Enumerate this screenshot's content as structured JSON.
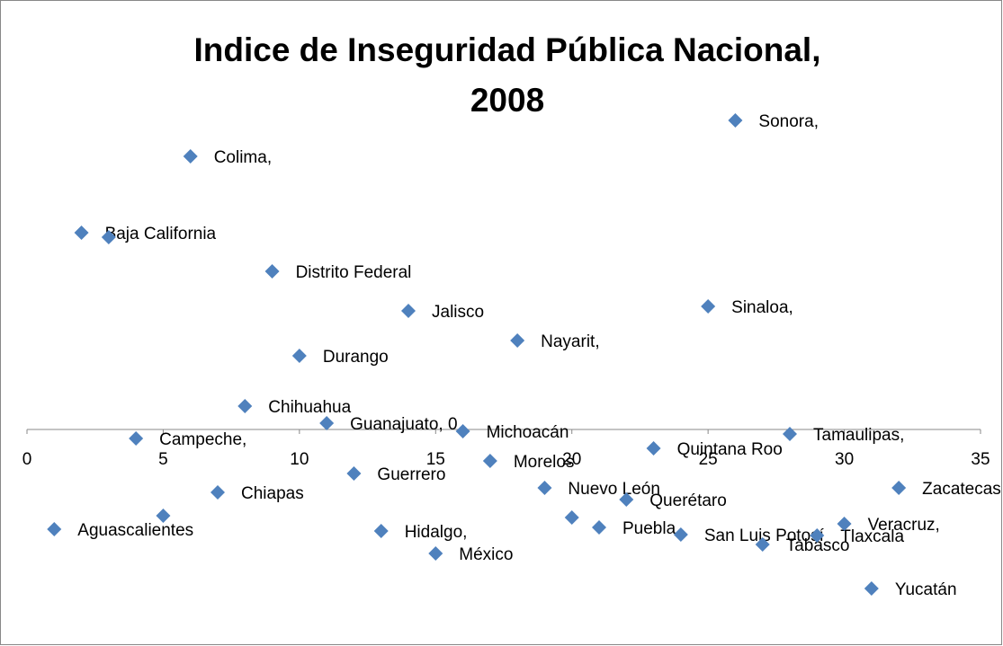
{
  "chart_data": {
    "type": "scatter",
    "title": [
      "Indice de Inseguridad Pública Nacional,",
      "2008"
    ],
    "labels": [
      "Aguascalientes",
      "Baja California",
      null,
      "Campeche,",
      null,
      "Colima,",
      "Chiapas",
      "Chihuahua",
      "Distrito Federal",
      "Durango",
      "Guanajuato, 0",
      "Guerrero",
      "Hidalgo,",
      "Jalisco",
      "México",
      "Michoacán",
      "Morelos",
      "Nayarit,",
      "Nuevo León",
      null,
      "Puebla,",
      "Querétaro",
      "Quintana Roo",
      "San Luis Potosí",
      "Sinaloa,",
      "Sonora,",
      "Tabasco",
      "Tamaulipas,",
      "Tlaxcala",
      "Veracruz,",
      "Yucatán",
      "Zacatecas"
    ],
    "x": [
      1,
      2,
      3,
      4,
      5,
      6,
      7,
      8,
      9,
      10,
      11,
      12,
      13,
      14,
      15,
      16,
      17,
      18,
      19,
      20,
      21,
      22,
      23,
      24,
      25,
      26,
      27,
      28,
      29,
      30,
      31,
      32
    ],
    "values": [
      -2.22,
      4.38,
      4.28,
      -0.2,
      -1.92,
      6.08,
      -1.4,
      0.52,
      3.52,
      1.64,
      0.14,
      -0.98,
      -2.26,
      2.64,
      -2.76,
      -0.04,
      -0.7,
      1.98,
      -1.3,
      -1.96,
      -2.18,
      -1.56,
      -0.42,
      -2.34,
      2.74,
      6.88,
      -2.56,
      -0.1,
      -2.36,
      -2.1,
      -3.54,
      -1.3
    ],
    "color": "#4f81bd",
    "xlim": [
      0,
      35
    ],
    "xticks": [
      0,
      5,
      10,
      15,
      20,
      25,
      30,
      35
    ],
    "ylim": [
      -4.54,
      9.36
    ]
  }
}
